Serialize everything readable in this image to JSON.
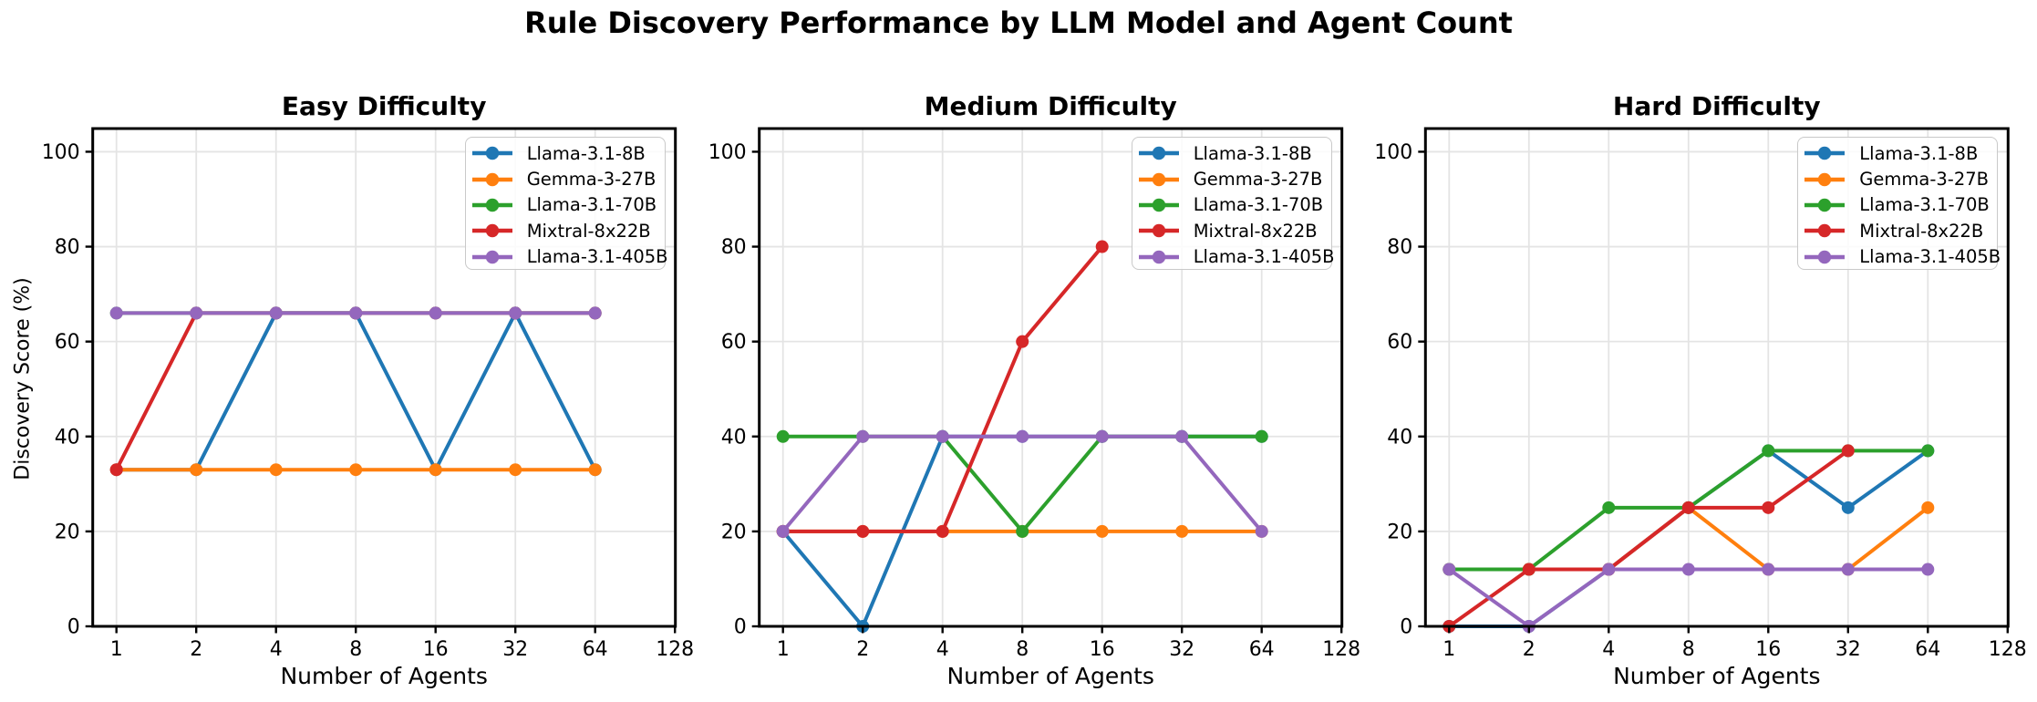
{
  "suptitle": "Rule Discovery Performance by LLM Model and Agent Count",
  "ylabel": "Discovery Score (%)",
  "xlabel": "Number of Agents",
  "palette": {
    "blue": "#1f77b4",
    "orange": "#ff7f0e",
    "green": "#2ca02c",
    "red": "#d62728",
    "purple": "#9467bd",
    "grid": "#e4e4e4",
    "spine": "#000000"
  },
  "chart_data": [
    {
      "type": "line",
      "title": "Easy Difficulty",
      "xlabel": "Number of Agents",
      "xscale": "log2",
      "x": [
        1,
        2,
        4,
        8,
        16,
        32,
        64
      ],
      "xticks": [
        1,
        2,
        4,
        8,
        16,
        32,
        64,
        128
      ],
      "yticks": [
        0,
        20,
        40,
        60,
        80,
        100
      ],
      "ylim": [
        0,
        105
      ],
      "grid": true,
      "legend_position": "upper right",
      "series": [
        {
          "name": "Llama-3.1-8B",
          "color": "#1f77b4",
          "values": [
            33,
            33,
            66,
            66,
            33,
            66,
            33
          ]
        },
        {
          "name": "Gemma-3-27B",
          "color": "#ff7f0e",
          "values": [
            33,
            33,
            33,
            33,
            33,
            33,
            33
          ]
        },
        {
          "name": "Llama-3.1-70B",
          "color": "#2ca02c",
          "values": [
            66,
            66,
            66,
            66,
            66,
            66,
            66
          ]
        },
        {
          "name": "Mixtral-8x22B",
          "color": "#d62728",
          "values": [
            33,
            66,
            66,
            66,
            66,
            66,
            66
          ]
        },
        {
          "name": "Llama-3.1-405B",
          "color": "#9467bd",
          "values": [
            66,
            66,
            66,
            66,
            66,
            66,
            66
          ]
        }
      ]
    },
    {
      "type": "line",
      "title": "Medium Difficulty",
      "xlabel": "Number of Agents",
      "xscale": "log2",
      "x": [
        1,
        2,
        4,
        8,
        16,
        32,
        64
      ],
      "xticks": [
        1,
        2,
        4,
        8,
        16,
        32,
        64,
        128
      ],
      "yticks": [
        0,
        20,
        40,
        60,
        80,
        100
      ],
      "ylim": [
        0,
        105
      ],
      "grid": true,
      "legend_position": "upper right",
      "series": [
        {
          "name": "Llama-3.1-8B",
          "color": "#1f77b4",
          "values": [
            20,
            0,
            40,
            40,
            40,
            40,
            40
          ]
        },
        {
          "name": "Gemma-3-27B",
          "color": "#ff7f0e",
          "values": [
            20,
            20,
            20,
            20,
            20,
            20,
            20
          ]
        },
        {
          "name": "Llama-3.1-70B",
          "color": "#2ca02c",
          "values": [
            40,
            40,
            40,
            20,
            40,
            40,
            40
          ]
        },
        {
          "name": "Mixtral-8x22B",
          "color": "#d62728",
          "values": [
            20,
            20,
            20,
            60,
            80,
            null,
            null
          ]
        },
        {
          "name": "Llama-3.1-405B",
          "color": "#9467bd",
          "values": [
            20,
            40,
            40,
            40,
            40,
            40,
            20
          ]
        }
      ]
    },
    {
      "type": "line",
      "title": "Hard Difficulty",
      "xlabel": "Number of Agents",
      "xscale": "log2",
      "x": [
        1,
        2,
        4,
        8,
        16,
        32,
        64
      ],
      "xticks": [
        1,
        2,
        4,
        8,
        16,
        32,
        64,
        128
      ],
      "yticks": [
        0,
        20,
        40,
        60,
        80,
        100
      ],
      "ylim": [
        0,
        105
      ],
      "grid": true,
      "legend_position": "upper right",
      "series": [
        {
          "name": "Llama-3.1-8B",
          "color": "#1f77b4",
          "values": [
            0,
            0,
            12,
            25,
            37,
            25,
            37
          ]
        },
        {
          "name": "Gemma-3-27B",
          "color": "#ff7f0e",
          "values": [
            12,
            12,
            12,
            25,
            12,
            12,
            25
          ]
        },
        {
          "name": "Llama-3.1-70B",
          "color": "#2ca02c",
          "values": [
            12,
            12,
            25,
            25,
            37,
            37,
            37
          ]
        },
        {
          "name": "Mixtral-8x22B",
          "color": "#d62728",
          "values": [
            0,
            12,
            12,
            25,
            25,
            37,
            null
          ]
        },
        {
          "name": "Llama-3.1-405B",
          "color": "#9467bd",
          "values": [
            12,
            0,
            12,
            12,
            12,
            12,
            12
          ]
        }
      ]
    }
  ]
}
